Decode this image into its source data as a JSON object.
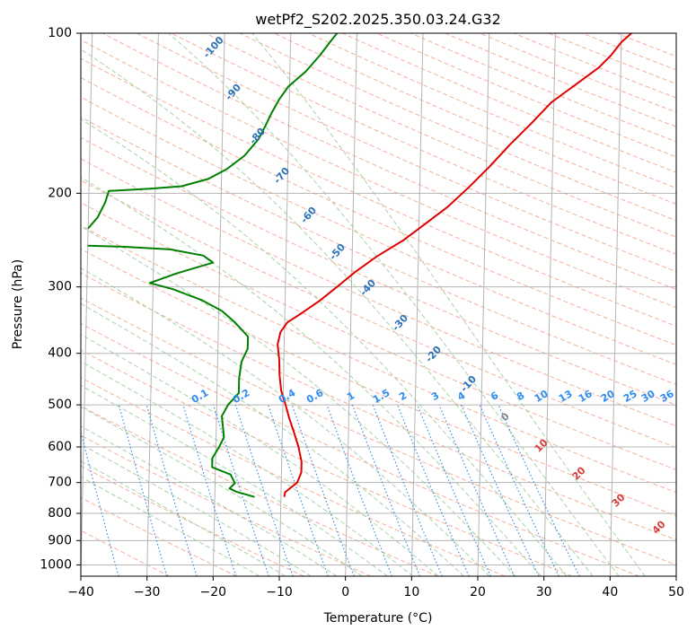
{
  "chart_data": {
    "type": "line",
    "title": "wetPf2_S202.2025.350.03.24.G32",
    "xlabel": "Temperature (°C)",
    "ylabel": "Pressure (hPa)",
    "xlim": [
      -40,
      50
    ],
    "ylim": [
      1050,
      100
    ],
    "y_scale": "log",
    "x_ticks": [
      -40,
      -30,
      -20,
      -10,
      0,
      10,
      20,
      30,
      40,
      50
    ],
    "y_ticks": [
      100,
      200,
      300,
      400,
      500,
      600,
      700,
      800,
      900,
      1000
    ],
    "grid": true,
    "series": [
      {
        "role": "temperature",
        "color": "#e00000",
        "points": [
          {
            "t": -9.5,
            "p": 745
          },
          {
            "t": -9.4,
            "p": 730
          },
          {
            "t": -7.6,
            "p": 700
          },
          {
            "t": -7.0,
            "p": 670
          },
          {
            "t": -7.0,
            "p": 640
          },
          {
            "t": -7.5,
            "p": 600
          },
          {
            "t": -8.3,
            "p": 560
          },
          {
            "t": -9.0,
            "p": 530
          },
          {
            "t": -9.6,
            "p": 500
          },
          {
            "t": -10.3,
            "p": 470
          },
          {
            "t": -10.6,
            "p": 440
          },
          {
            "t": -10.7,
            "p": 410
          },
          {
            "t": -11.0,
            "p": 385
          },
          {
            "t": -10.6,
            "p": 365
          },
          {
            "t": -9.6,
            "p": 350
          },
          {
            "t": -7.3,
            "p": 335
          },
          {
            "t": -4.7,
            "p": 318
          },
          {
            "t": -2.2,
            "p": 300
          },
          {
            "t": 0.4,
            "p": 282
          },
          {
            "t": 3.7,
            "p": 263
          },
          {
            "t": 7.7,
            "p": 245
          },
          {
            "t": 11.0,
            "p": 228
          },
          {
            "t": 14.3,
            "p": 212
          },
          {
            "t": 17.4,
            "p": 195
          },
          {
            "t": 20.5,
            "p": 178
          },
          {
            "t": 23.5,
            "p": 162
          },
          {
            "t": 26.6,
            "p": 148
          },
          {
            "t": 29.6,
            "p": 135
          },
          {
            "t": 33.6,
            "p": 124
          },
          {
            "t": 36.7,
            "p": 116
          },
          {
            "t": 38.5,
            "p": 110
          },
          {
            "t": 40.0,
            "p": 104
          },
          {
            "t": 41.5,
            "p": 100
          }
        ]
      },
      {
        "role": "dewpoint",
        "color": "#008000",
        "points": [
          {
            "t": -14.0,
            "p": 745
          },
          {
            "t": -16.8,
            "p": 728
          },
          {
            "t": -17.8,
            "p": 718
          },
          {
            "t": -17.0,
            "p": 702
          },
          {
            "t": -17.7,
            "p": 676
          },
          {
            "t": -20.5,
            "p": 655
          },
          {
            "t": -20.5,
            "p": 630
          },
          {
            "t": -19.5,
            "p": 600
          },
          {
            "t": -18.8,
            "p": 575
          },
          {
            "t": -19.0,
            "p": 550
          },
          {
            "t": -19.2,
            "p": 525
          },
          {
            "t": -18.3,
            "p": 500
          },
          {
            "t": -16.7,
            "p": 475
          },
          {
            "t": -16.7,
            "p": 445
          },
          {
            "t": -16.4,
            "p": 415
          },
          {
            "t": -15.5,
            "p": 392
          },
          {
            "t": -15.5,
            "p": 372
          },
          {
            "t": -17.5,
            "p": 350
          },
          {
            "t": -19.5,
            "p": 333
          },
          {
            "t": -22.5,
            "p": 318
          },
          {
            "t": -27.0,
            "p": 303
          },
          {
            "t": -30.5,
            "p": 295
          },
          {
            "t": -26.5,
            "p": 283
          },
          {
            "t": -21.0,
            "p": 270
          },
          {
            "t": -22.5,
            "p": 262
          },
          {
            "t": -27.5,
            "p": 255
          },
          {
            "t": -35.0,
            "p": 252
          },
          {
            "t": -40.0,
            "p": 251
          }
        ]
      },
      {
        "role": "dewpoint-upper",
        "color": "#008000",
        "points": [
          {
            "t": -40.0,
            "p": 233
          },
          {
            "t": -38.6,
            "p": 222
          },
          {
            "t": -37.5,
            "p": 208
          },
          {
            "t": -37.0,
            "p": 198
          },
          {
            "t": -30.5,
            "p": 196
          },
          {
            "t": -26.0,
            "p": 194
          },
          {
            "t": -22.0,
            "p": 188
          },
          {
            "t": -19.2,
            "p": 180
          },
          {
            "t": -16.6,
            "p": 170
          },
          {
            "t": -14.5,
            "p": 158
          },
          {
            "t": -13.6,
            "p": 150
          },
          {
            "t": -12.6,
            "p": 141
          },
          {
            "t": -11.5,
            "p": 133
          },
          {
            "t": -10.2,
            "p": 126
          },
          {
            "t": -7.6,
            "p": 118
          },
          {
            "t": -5.5,
            "p": 110
          },
          {
            "t": -3.8,
            "p": 103
          },
          {
            "t": -3.0,
            "p": 100
          }
        ]
      }
    ],
    "dry_adiabat_labels": [
      "-100",
      "-90",
      "-80",
      "-70",
      "-60",
      "-50",
      "-40",
      "-30",
      "-20",
      "-10"
    ],
    "mixing_ratio_labels": [
      "0.1",
      "0.2",
      "0.4",
      "0.6",
      "1",
      "1.5",
      "2",
      "3",
      "4",
      "6",
      "8",
      "10",
      "13",
      "16",
      "20",
      "25",
      "30",
      "36"
    ],
    "moist_adiabat_labels": [
      "0",
      "10",
      "20",
      "30",
      "40"
    ],
    "colors": {
      "isotherm": "#b4b4b4",
      "isobar": "#b4b4b4",
      "dry_adiabat": "#f4b09a",
      "moist_adiabat": "#a6d3a6",
      "mixing_ratio": "#3a8ee6",
      "dry_label": "#2c72b8",
      "mixing_label": "#2f8cf0",
      "moist_label": "#d93a3a",
      "moist_label_zero": "#888888"
    }
  }
}
